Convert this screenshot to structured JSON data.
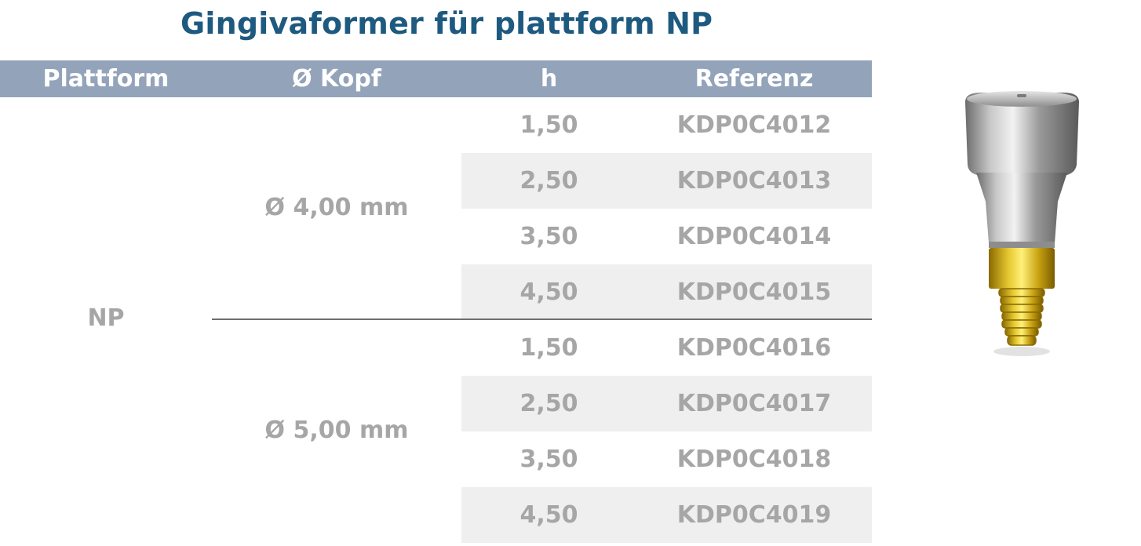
{
  "title": "Gingivaformer für plattform NP",
  "table": {
    "headers": [
      "Plattform",
      "Ø Kopf",
      "h",
      "Referenz"
    ],
    "platform": "NP",
    "groups": [
      {
        "diameter": "Ø 4,00 mm",
        "rows": [
          {
            "h": "1,50",
            "ref": "KDP0C4012"
          },
          {
            "h": "2,50",
            "ref": "KDP0C4013"
          },
          {
            "h": "3,50",
            "ref": "KDP0C4014"
          },
          {
            "h": "4,50",
            "ref": "KDP0C4015"
          }
        ]
      },
      {
        "diameter": "Ø 5,00 mm",
        "rows": [
          {
            "h": "1,50",
            "ref": "KDP0C4016"
          },
          {
            "h": "2,50",
            "ref": "KDP0C4017"
          },
          {
            "h": "3,50",
            "ref": "KDP0C4018"
          },
          {
            "h": "4,50",
            "ref": "KDP0C4019"
          }
        ]
      }
    ]
  },
  "colors": {
    "title": "#1e5a80",
    "header_bg": "#93a3ba",
    "text_gray": "#a6a6a6",
    "row_shade": "#efefef",
    "screw_gold": "#d4b21a"
  }
}
